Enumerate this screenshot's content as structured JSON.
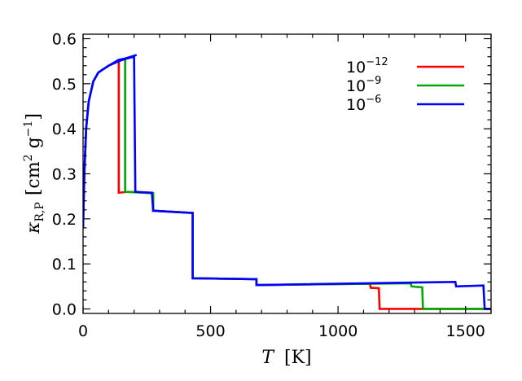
{
  "chart_data": {
    "type": "line",
    "xlabel": {
      "var": "T",
      "unit": "[K]"
    },
    "ylabel": {
      "var": "κ",
      "sub": "R,P",
      "unit_pre": "[cm",
      "unit_exp1": "2",
      "unit_mid": " g",
      "unit_exp2": "−1",
      "unit_post": "]"
    },
    "xlim": [
      0,
      1600
    ],
    "ylim": [
      -0.01,
      0.61
    ],
    "xticks": [
      0,
      500,
      1000,
      1500
    ],
    "yticks": [
      0.0,
      0.1,
      0.2,
      0.3,
      0.4,
      0.5,
      0.6
    ],
    "ytick_labels": [
      "0.0",
      "0.1",
      "0.2",
      "0.3",
      "0.4",
      "0.5",
      "0.6"
    ],
    "legend_position": "top-right",
    "series": [
      {
        "name": "10",
        "exp": "−12",
        "color": "#ff0000",
        "points": [
          [
            140,
            0.555
          ],
          [
            140,
            0.258
          ],
          [
            175,
            0.26
          ],
          [
            210,
            0.259
          ],
          [
            275,
            0.257
          ],
          [
            275,
            0.218
          ],
          [
            430,
            0.213
          ],
          [
            430,
            0.068
          ],
          [
            680,
            0.066
          ],
          [
            680,
            0.053
          ],
          [
            1125,
            0.056
          ],
          [
            1128,
            0.047
          ],
          [
            1160,
            0.046
          ],
          [
            1163,
            0.0
          ],
          [
            1600,
            0.0
          ]
        ]
      },
      {
        "name": "10",
        "exp": "−9",
        "color": "#00aa00",
        "points": [
          [
            165,
            0.555
          ],
          [
            165,
            0.26
          ],
          [
            210,
            0.259
          ],
          [
            275,
            0.257
          ],
          [
            275,
            0.218
          ],
          [
            430,
            0.213
          ],
          [
            430,
            0.068
          ],
          [
            680,
            0.066
          ],
          [
            680,
            0.053
          ],
          [
            1285,
            0.057
          ],
          [
            1288,
            0.05
          ],
          [
            1330,
            0.048
          ],
          [
            1333,
            0.0
          ],
          [
            1600,
            0.0
          ]
        ]
      },
      {
        "name": "10",
        "exp": "−6",
        "color": "#0000ff",
        "points": [
          [
            0,
            0.18
          ],
          [
            5,
            0.3
          ],
          [
            12,
            0.4
          ],
          [
            22,
            0.46
          ],
          [
            40,
            0.505
          ],
          [
            60,
            0.525
          ],
          [
            100,
            0.54
          ],
          [
            140,
            0.55
          ],
          [
            165,
            0.555
          ],
          [
            200,
            0.56
          ],
          [
            205,
            0.26
          ],
          [
            270,
            0.258
          ],
          [
            275,
            0.218
          ],
          [
            430,
            0.213
          ],
          [
            430,
            0.068
          ],
          [
            680,
            0.066
          ],
          [
            680,
            0.053
          ],
          [
            1460,
            0.06
          ],
          [
            1463,
            0.05
          ],
          [
            1570,
            0.052
          ],
          [
            1575,
            0.0
          ],
          [
            1600,
            0.0
          ]
        ]
      }
    ],
    "shared_rise": [
      [
        0,
        0.18
      ],
      [
        5,
        0.3
      ],
      [
        12,
        0.4
      ],
      [
        22,
        0.46
      ],
      [
        40,
        0.505
      ],
      [
        60,
        0.525
      ],
      [
        100,
        0.54
      ],
      [
        140,
        0.553
      ],
      [
        165,
        0.556
      ],
      [
        200,
        0.562
      ],
      [
        210,
        0.564
      ]
    ]
  }
}
